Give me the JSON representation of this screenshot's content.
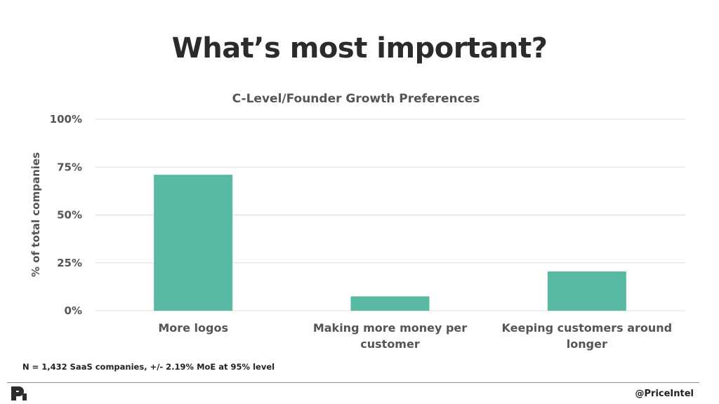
{
  "slide": {
    "title": "What’s most important?"
  },
  "chart_data": {
    "type": "bar",
    "title": "C-Level/Founder Growth Preferences",
    "xlabel": "",
    "ylabel": "% of total companies",
    "categories": [
      "More logos",
      "Making more money per customer",
      "Keeping customers around longer"
    ],
    "category_lines": [
      [
        "More logos"
      ],
      [
        "Making more money per",
        "customer"
      ],
      [
        "Keeping customers around",
        "longer"
      ]
    ],
    "values": [
      71,
      7.5,
      20.5
    ],
    "ylim": [
      0,
      100
    ],
    "yticks": [
      0,
      25,
      50,
      75,
      100
    ],
    "ytick_labels": [
      "0%",
      "25%",
      "50%",
      "75%",
      "100%"
    ],
    "grid": true,
    "bar_color": "#57b9a2"
  },
  "footer": {
    "note": "N = 1,432 SaaS companies, +/- 2.19% MoE at 95% level",
    "handle": "@PriceIntel",
    "logo_icon": "priceintel-logo-icon"
  }
}
